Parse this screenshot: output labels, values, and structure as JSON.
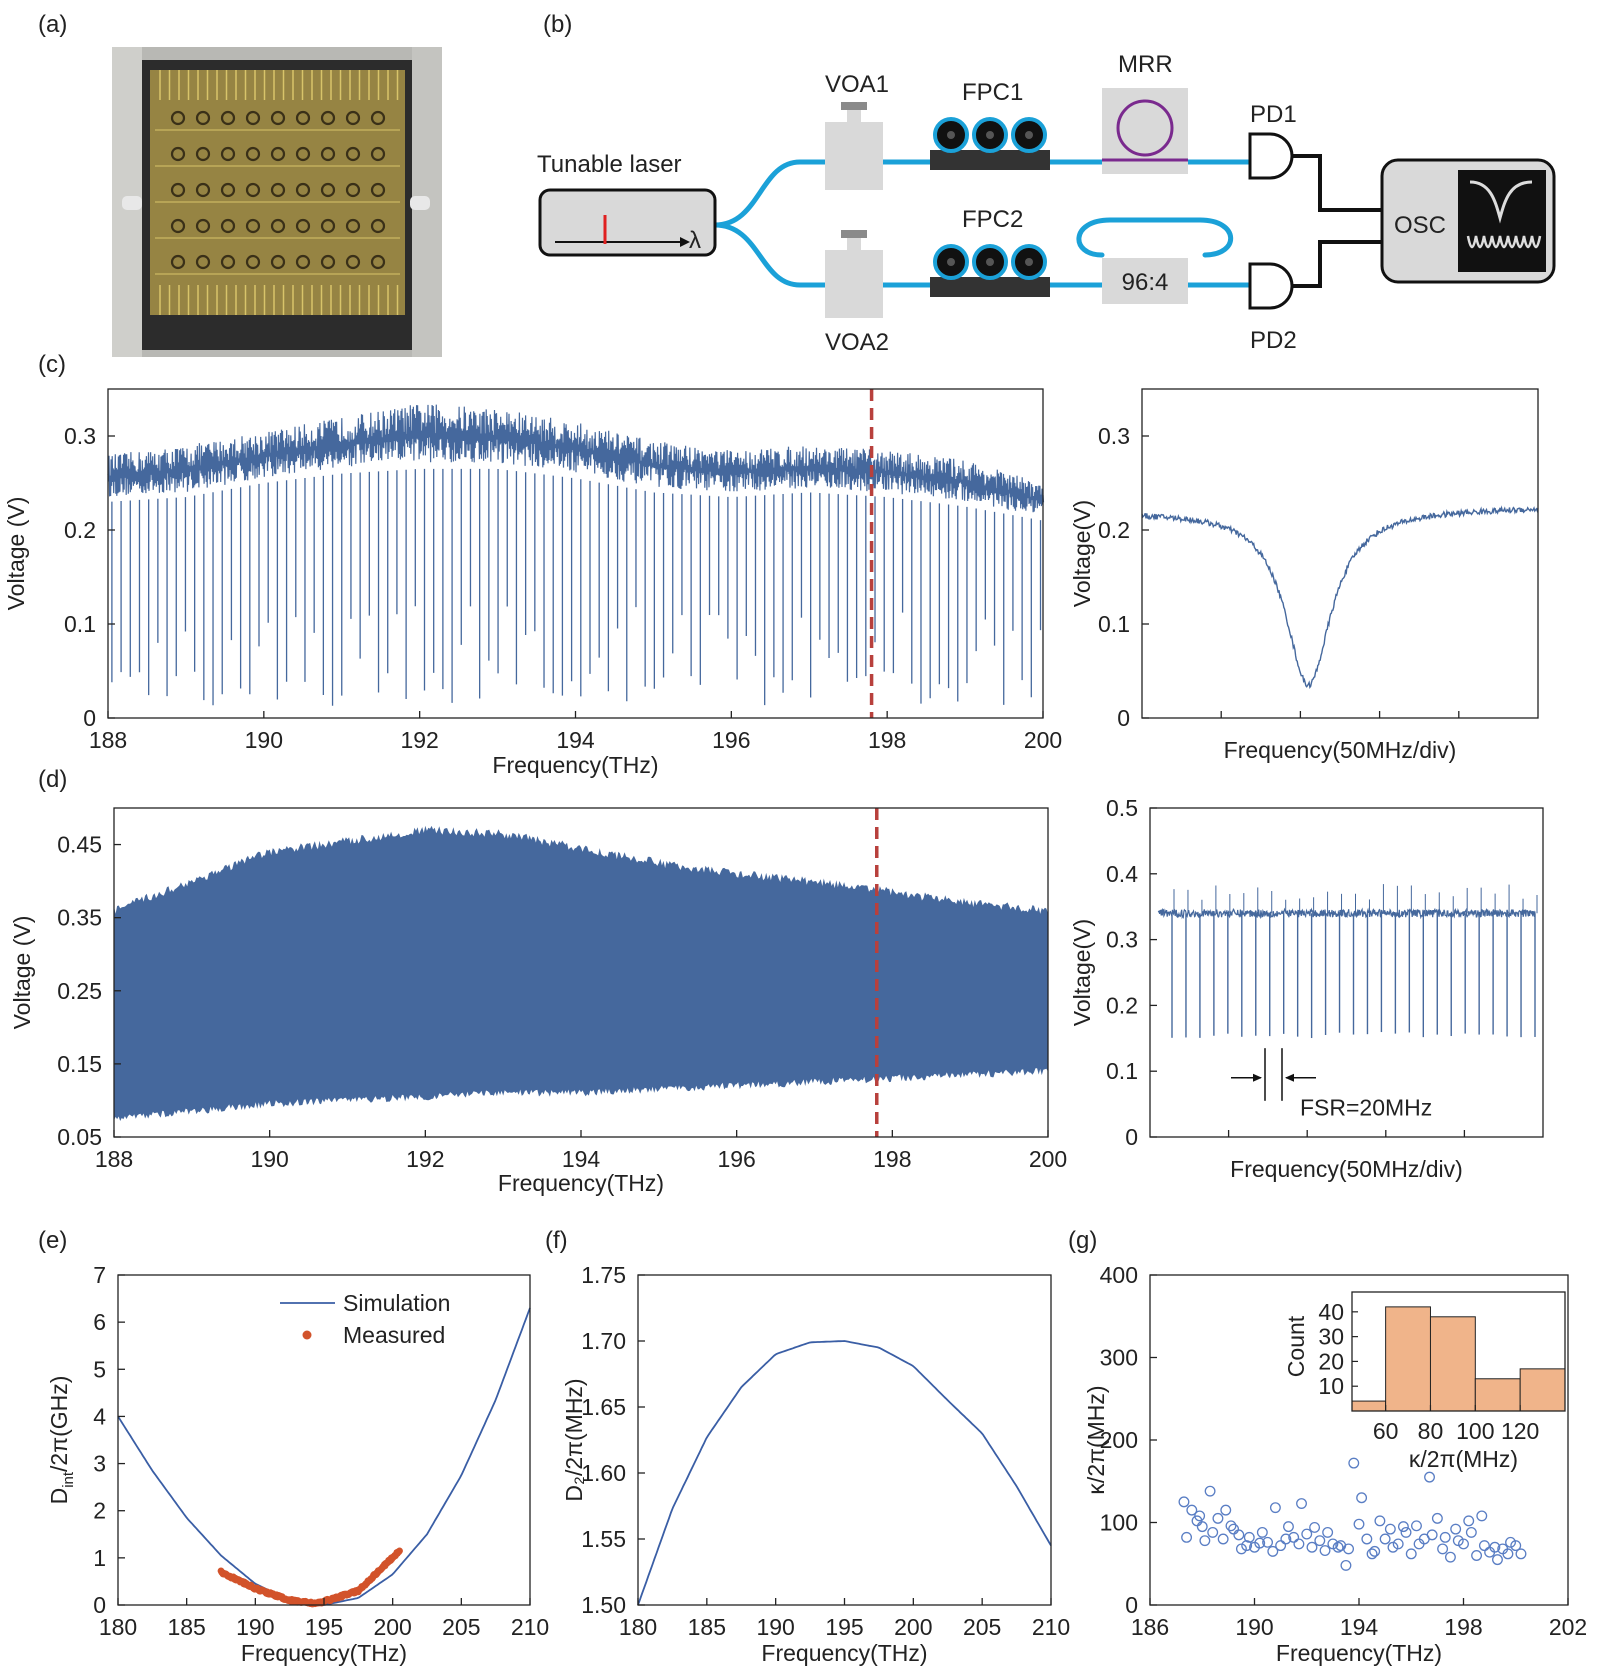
{
  "panels": {
    "a": {
      "label": "(a)"
    },
    "b": {
      "label": "(b)"
    },
    "c": {
      "label": "(c)"
    },
    "d": {
      "label": "(d)"
    },
    "e": {
      "label": "(e)"
    },
    "f": {
      "label": "(f)"
    },
    "g": {
      "label": "(g)"
    }
  },
  "setup": {
    "laser_label": "Tunable laser",
    "lambda_symbol": "λ",
    "voa1": "VOA1",
    "voa2": "VOA2",
    "fpc1": "FPC1",
    "fpc2": "FPC2",
    "mrr": "MRR",
    "coupler": "96:4",
    "pd1": "PD1",
    "pd2": "PD2",
    "osc": "OSC"
  },
  "colors": {
    "trace_blue": "#45689d",
    "marker_line": "#b8403c",
    "sim_line": "#3a5ea5",
    "measured": "#d2532b",
    "scatter_open": "#5a7ec4",
    "hist_fill": "#f0b48a",
    "fiber_blue": "#1ba1d8",
    "laser_red": "#e02020",
    "mrr_purple": "#7a2a8e"
  },
  "chart_data": [
    {
      "id": "c_main",
      "type": "line",
      "description_of_series": "transmission spectrum",
      "xlabel": "Frequency(THz)",
      "ylabel": "Voltage (V)",
      "xlim": [
        188,
        200
      ],
      "ylim": [
        0,
        0.35
      ],
      "xticks": [
        "188",
        "190",
        "192",
        "194",
        "196",
        "198",
        "200"
      ],
      "yticks": [
        "0",
        "0.1",
        "0.2",
        "0.3"
      ],
      "ytick_values": [
        0,
        0.1,
        0.2,
        0.3
      ],
      "marker_x": 197.8,
      "envelope_x": [
        188,
        189,
        190,
        191,
        192,
        193,
        194,
        195,
        196,
        197,
        198,
        199,
        200
      ],
      "envelope_top": [
        0.28,
        0.29,
        0.305,
        0.32,
        0.335,
        0.33,
        0.315,
        0.295,
        0.285,
        0.29,
        0.285,
        0.275,
        0.25
      ],
      "baseline": [
        0.23,
        0.235,
        0.25,
        0.26,
        0.265,
        0.265,
        0.255,
        0.24,
        0.235,
        0.24,
        0.235,
        0.225,
        0.21
      ],
      "dip_min": [
        0.01,
        0.05
      ]
    },
    {
      "id": "c_zoom",
      "type": "line",
      "xlabel": "Frequency(50MHz/div)",
      "ylabel": "Voltage(V)",
      "ylim": [
        0,
        0.35
      ],
      "yticks": [
        "0",
        "0.1",
        "0.2",
        "0.3"
      ],
      "ytick_values": [
        0,
        0.1,
        0.2,
        0.3
      ],
      "x_div": [
        0,
        1,
        2,
        3,
        4,
        5
      ],
      "baseline_left": 0.22,
      "baseline_right": 0.225,
      "dip_center_div": 2.1,
      "dip_min": 0.035,
      "dip_halfwidth_div": 0.35
    },
    {
      "id": "d_main",
      "type": "area",
      "xlabel": "Frequency(THz)",
      "ylabel": "Voltage (V)",
      "xlim": [
        188,
        200
      ],
      "ylim": [
        0.05,
        0.5
      ],
      "xticks": [
        "188",
        "190",
        "192",
        "194",
        "196",
        "198",
        "200"
      ],
      "yticks": [
        "0.05",
        "0.15",
        "0.25",
        "0.35",
        "0.45"
      ],
      "ytick_values": [
        0.05,
        0.15,
        0.25,
        0.35,
        0.45
      ],
      "marker_x": 197.8,
      "env_x": [
        188,
        189,
        190,
        191,
        192,
        193,
        194,
        195,
        196,
        197,
        198,
        199,
        200
      ],
      "env_top": [
        0.36,
        0.4,
        0.44,
        0.455,
        0.47,
        0.465,
        0.445,
        0.425,
        0.41,
        0.4,
        0.385,
        0.37,
        0.36
      ],
      "env_bottom": [
        0.075,
        0.085,
        0.095,
        0.1,
        0.105,
        0.11,
        0.11,
        0.115,
        0.12,
        0.125,
        0.13,
        0.135,
        0.14
      ]
    },
    {
      "id": "d_zoom",
      "type": "line",
      "xlabel": "Frequency(50MHz/div)",
      "ylabel": "Voltage(V)",
      "ylim": [
        0,
        0.5
      ],
      "yticks": [
        "0",
        "0.1",
        "0.2",
        "0.3",
        "0.4",
        "0.5"
      ],
      "ytick_values": [
        0,
        0.1,
        0.2,
        0.3,
        0.4,
        0.5
      ],
      "baseline": 0.34,
      "dip_min": 0.15,
      "n_dips": 27,
      "annotation": "FSR=20MHz"
    },
    {
      "id": "e",
      "type": "line",
      "xlabel": "Frequency(THz)",
      "ylabel_main": "D",
      "ylabel_sub": "int",
      "ylabel_rest": "/2π(GHz)",
      "xlim": [
        180,
        210
      ],
      "ylim": [
        0,
        7
      ],
      "xticks": [
        "180",
        "185",
        "190",
        "195",
        "200",
        "205",
        "210"
      ],
      "xtick_values": [
        180,
        185,
        190,
        195,
        200,
        205,
        210
      ],
      "yticks": [
        "0",
        "1",
        "2",
        "3",
        "4",
        "5",
        "6",
        "7"
      ],
      "ytick_values": [
        0,
        1,
        2,
        3,
        4,
        5,
        6,
        7
      ],
      "legend": [
        "Simulation",
        "Measured"
      ],
      "simulation_x": [
        180,
        182.5,
        185,
        187.5,
        190,
        192.5,
        195,
        197.5,
        200,
        202.5,
        205,
        207.5,
        210
      ],
      "simulation_y": [
        4.0,
        2.85,
        1.85,
        1.05,
        0.45,
        0.1,
        0.0,
        0.15,
        0.65,
        1.5,
        2.75,
        4.35,
        6.3
      ],
      "measured_range": [
        187.5,
        200.5
      ],
      "measured_anchor_x": [
        187.5,
        190,
        192.5,
        194.5,
        197.5,
        200.5
      ],
      "measured_anchor_y": [
        0.7,
        0.35,
        0.1,
        0.03,
        0.3,
        1.15
      ]
    },
    {
      "id": "f",
      "type": "line",
      "xlabel": "Frequency(THz)",
      "ylabel": "D₂/2π(MHz)",
      "xlim": [
        180,
        210
      ],
      "ylim": [
        1.5,
        1.75
      ],
      "xticks": [
        "180",
        "185",
        "190",
        "195",
        "200",
        "205",
        "210"
      ],
      "xtick_values": [
        180,
        185,
        190,
        195,
        200,
        205,
        210
      ],
      "yticks": [
        "1.50",
        "1.55",
        "1.60",
        "1.65",
        "1.70",
        "1.75"
      ],
      "ytick_values": [
        1.5,
        1.55,
        1.6,
        1.65,
        1.7,
        1.75
      ],
      "x": [
        180,
        182.5,
        185,
        187.5,
        190,
        192.5,
        195,
        197.5,
        200,
        202.5,
        205,
        207.5,
        210
      ],
      "y": [
        1.5,
        1.573,
        1.627,
        1.665,
        1.69,
        1.699,
        1.7,
        1.695,
        1.681,
        1.655,
        1.63,
        1.59,
        1.545
      ]
    },
    {
      "id": "g",
      "type": "scatter",
      "xlabel": "Frequency(THz)",
      "ylabel": "κ/2π(MHz)",
      "xlim": [
        186,
        202
      ],
      "ylim": [
        0,
        400
      ],
      "xticks": [
        "186",
        "190",
        "194",
        "198",
        "202"
      ],
      "xtick_values": [
        186,
        190,
        194,
        198,
        202
      ],
      "yticks": [
        "0",
        "100",
        "200",
        "300",
        "400"
      ],
      "ytick_values": [
        0,
        100,
        200,
        300,
        400
      ],
      "points_x": [
        187.3,
        187.4,
        187.6,
        187.8,
        187.9,
        188.0,
        188.1,
        188.3,
        188.4,
        188.6,
        188.8,
        188.9,
        189.1,
        189.2,
        189.4,
        189.5,
        189.7,
        189.8,
        190.0,
        190.2,
        190.3,
        190.5,
        190.7,
        190.8,
        191.0,
        191.2,
        191.3,
        191.5,
        191.7,
        191.8,
        192.0,
        192.2,
        192.3,
        192.5,
        192.7,
        192.8,
        193.0,
        193.2,
        193.3,
        193.5,
        193.6,
        193.8,
        194.0,
        194.1,
        194.3,
        194.5,
        194.6,
        194.8,
        195.0,
        195.2,
        195.3,
        195.5,
        195.7,
        195.8,
        196.0,
        196.2,
        196.3,
        196.5,
        196.7,
        196.8,
        197.0,
        197.2,
        197.3,
        197.5,
        197.7,
        197.8,
        198.0,
        198.2,
        198.3,
        198.5,
        198.7,
        198.8,
        199.0,
        199.2,
        199.3,
        199.5,
        199.7,
        199.8,
        200.0,
        200.2
      ],
      "points_y": [
        125,
        82,
        115,
        102,
        108,
        95,
        78,
        138,
        88,
        105,
        80,
        115,
        96,
        92,
        85,
        68,
        72,
        82,
        70,
        75,
        88,
        76,
        65,
        118,
        72,
        80,
        95,
        82,
        74,
        123,
        86,
        70,
        94,
        78,
        66,
        88,
        74,
        70,
        72,
        48,
        68,
        172,
        98,
        130,
        80,
        62,
        65,
        102,
        80,
        92,
        70,
        74,
        95,
        88,
        62,
        96,
        74,
        80,
        155,
        85,
        105,
        68,
        82,
        58,
        92,
        78,
        74,
        102,
        88,
        60,
        108,
        72,
        64,
        70,
        55,
        68,
        62,
        76,
        72,
        62
      ],
      "inset": {
        "type": "bar",
        "xlabel": "κ/2π(MHz)",
        "ylabel": "Count",
        "bin_edges": [
          40,
          60,
          80,
          100,
          120,
          140
        ],
        "counts": [
          4,
          42,
          38,
          13,
          17
        ],
        "xlim": [
          45,
          140
        ],
        "ylim": [
          0,
          48
        ],
        "xticks": [
          "60",
          "80",
          "100",
          "120"
        ],
        "xtick_values": [
          60,
          80,
          100,
          120
        ],
        "yticks": [
          "10",
          "20",
          "30",
          "40"
        ],
        "ytick_values": [
          10,
          20,
          30,
          40
        ]
      }
    }
  ]
}
